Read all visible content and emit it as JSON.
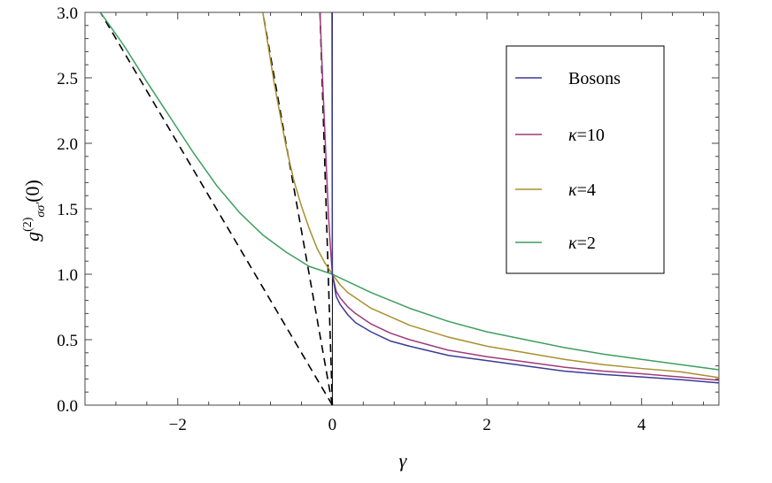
{
  "chart_data": {
    "type": "line",
    "xlabel": "γ",
    "ylabel": {
      "base": "g",
      "superscript": "(2)",
      "subscript": "σσ'",
      "arg": "(0)"
    },
    "xlim": [
      -3.2,
      5.0
    ],
    "ylim": [
      0.0,
      3.0
    ],
    "x_ticks": [
      -2,
      0,
      2,
      4
    ],
    "x_tick_labels": [
      "−2",
      "0",
      "2",
      "4"
    ],
    "y_ticks": [
      0.0,
      0.5,
      1.0,
      1.5,
      2.0,
      2.5,
      3.0
    ],
    "y_tick_labels": [
      "0.0",
      "0.5",
      "1.0",
      "1.5",
      "2.0",
      "2.5",
      "3.0"
    ],
    "grid": false,
    "legend_position": "top-right",
    "series": [
      {
        "name": "Bosons",
        "color": "#3b3b96",
        "x": [
          -0.005,
          0.0,
          0.05,
          0.1,
          0.2,
          0.3,
          0.5,
          0.75,
          1.0,
          1.5,
          2.0,
          2.5,
          3.0,
          3.5,
          4.0,
          4.5,
          5.0
        ],
        "y": [
          3.0,
          1.0,
          0.83,
          0.77,
          0.69,
          0.63,
          0.56,
          0.49,
          0.45,
          0.38,
          0.34,
          0.3,
          0.26,
          0.235,
          0.215,
          0.195,
          0.17
        ]
      },
      {
        "name": "κ=10",
        "color": "#a03a7a",
        "x": [
          -0.16,
          -0.12,
          -0.08,
          -0.05,
          -0.03,
          -0.01,
          0.0,
          0.05,
          0.1,
          0.2,
          0.3,
          0.5,
          0.75,
          1.0,
          1.5,
          2.0,
          2.5,
          3.0,
          3.5,
          4.0,
          4.5,
          5.0
        ],
        "y": [
          3.0,
          2.4,
          1.85,
          1.45,
          1.25,
          1.08,
          1.0,
          0.87,
          0.82,
          0.75,
          0.7,
          0.62,
          0.55,
          0.5,
          0.42,
          0.37,
          0.33,
          0.29,
          0.26,
          0.24,
          0.215,
          0.19
        ]
      },
      {
        "name": "κ=4",
        "color": "#a8902e",
        "x": [
          -0.9,
          -0.75,
          -0.6,
          -0.5,
          -0.4,
          -0.3,
          -0.2,
          -0.1,
          0.0,
          0.1,
          0.2,
          0.5,
          1.0,
          1.5,
          2.0,
          2.5,
          3.0,
          3.5,
          4.0,
          4.5,
          5.0
        ],
        "y": [
          3.0,
          2.45,
          1.98,
          1.72,
          1.52,
          1.35,
          1.2,
          1.09,
          1.0,
          0.92,
          0.86,
          0.74,
          0.61,
          0.52,
          0.45,
          0.4,
          0.35,
          0.31,
          0.28,
          0.255,
          0.21
        ]
      },
      {
        "name": "κ=2",
        "color": "#3e9e5e",
        "x": [
          -3.0,
          -2.7,
          -2.4,
          -2.1,
          -1.8,
          -1.5,
          -1.2,
          -0.9,
          -0.6,
          -0.3,
          0.0,
          0.5,
          1.0,
          1.5,
          2.0,
          2.5,
          3.0,
          3.5,
          4.0,
          4.5,
          5.0
        ],
        "y": [
          3.0,
          2.75,
          2.47,
          2.2,
          1.93,
          1.68,
          1.47,
          1.3,
          1.17,
          1.06,
          1.0,
          0.86,
          0.74,
          0.64,
          0.56,
          0.5,
          0.44,
          0.39,
          0.35,
          0.31,
          0.27
        ]
      }
    ],
    "asymptotes": [
      {
        "style": "dashed",
        "color": "#000000",
        "x": [
          0.0,
          -3.0
        ],
        "y": [
          0.0,
          3.0
        ]
      },
      {
        "style": "dashed",
        "color": "#000000",
        "x": [
          0.0,
          -0.9
        ],
        "y": [
          0.0,
          3.0
        ]
      },
      {
        "style": "dashed",
        "color": "#000000",
        "x": [
          0.0,
          -0.16
        ],
        "y": [
          0.0,
          3.0
        ]
      }
    ]
  }
}
